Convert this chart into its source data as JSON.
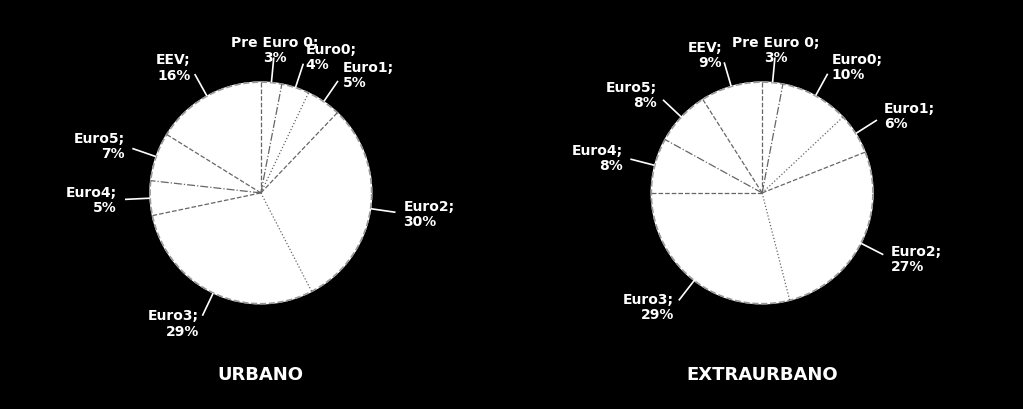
{
  "background_color": "#000000",
  "text_color": "#ffffff",
  "urbano": {
    "labels": [
      "Pre Euro 0",
      "Euro0",
      "Euro1",
      "Euro2",
      "Euro3",
      "Euro4",
      "Euro5",
      "EEV"
    ],
    "values": [
      3,
      4,
      5,
      30,
      29,
      5,
      7,
      16
    ],
    "title": "URBANO"
  },
  "extraurbano": {
    "labels": [
      "Pre Euro 0",
      "Euro0",
      "Euro1",
      "Euro2",
      "Euro3",
      "Euro4",
      "Euro5",
      "EEV"
    ],
    "values": [
      3,
      10,
      6,
      27,
      29,
      8,
      8,
      9
    ],
    "title": "EXTRAURBANO"
  },
  "label_font_size": 10,
  "title_font_size": 13
}
